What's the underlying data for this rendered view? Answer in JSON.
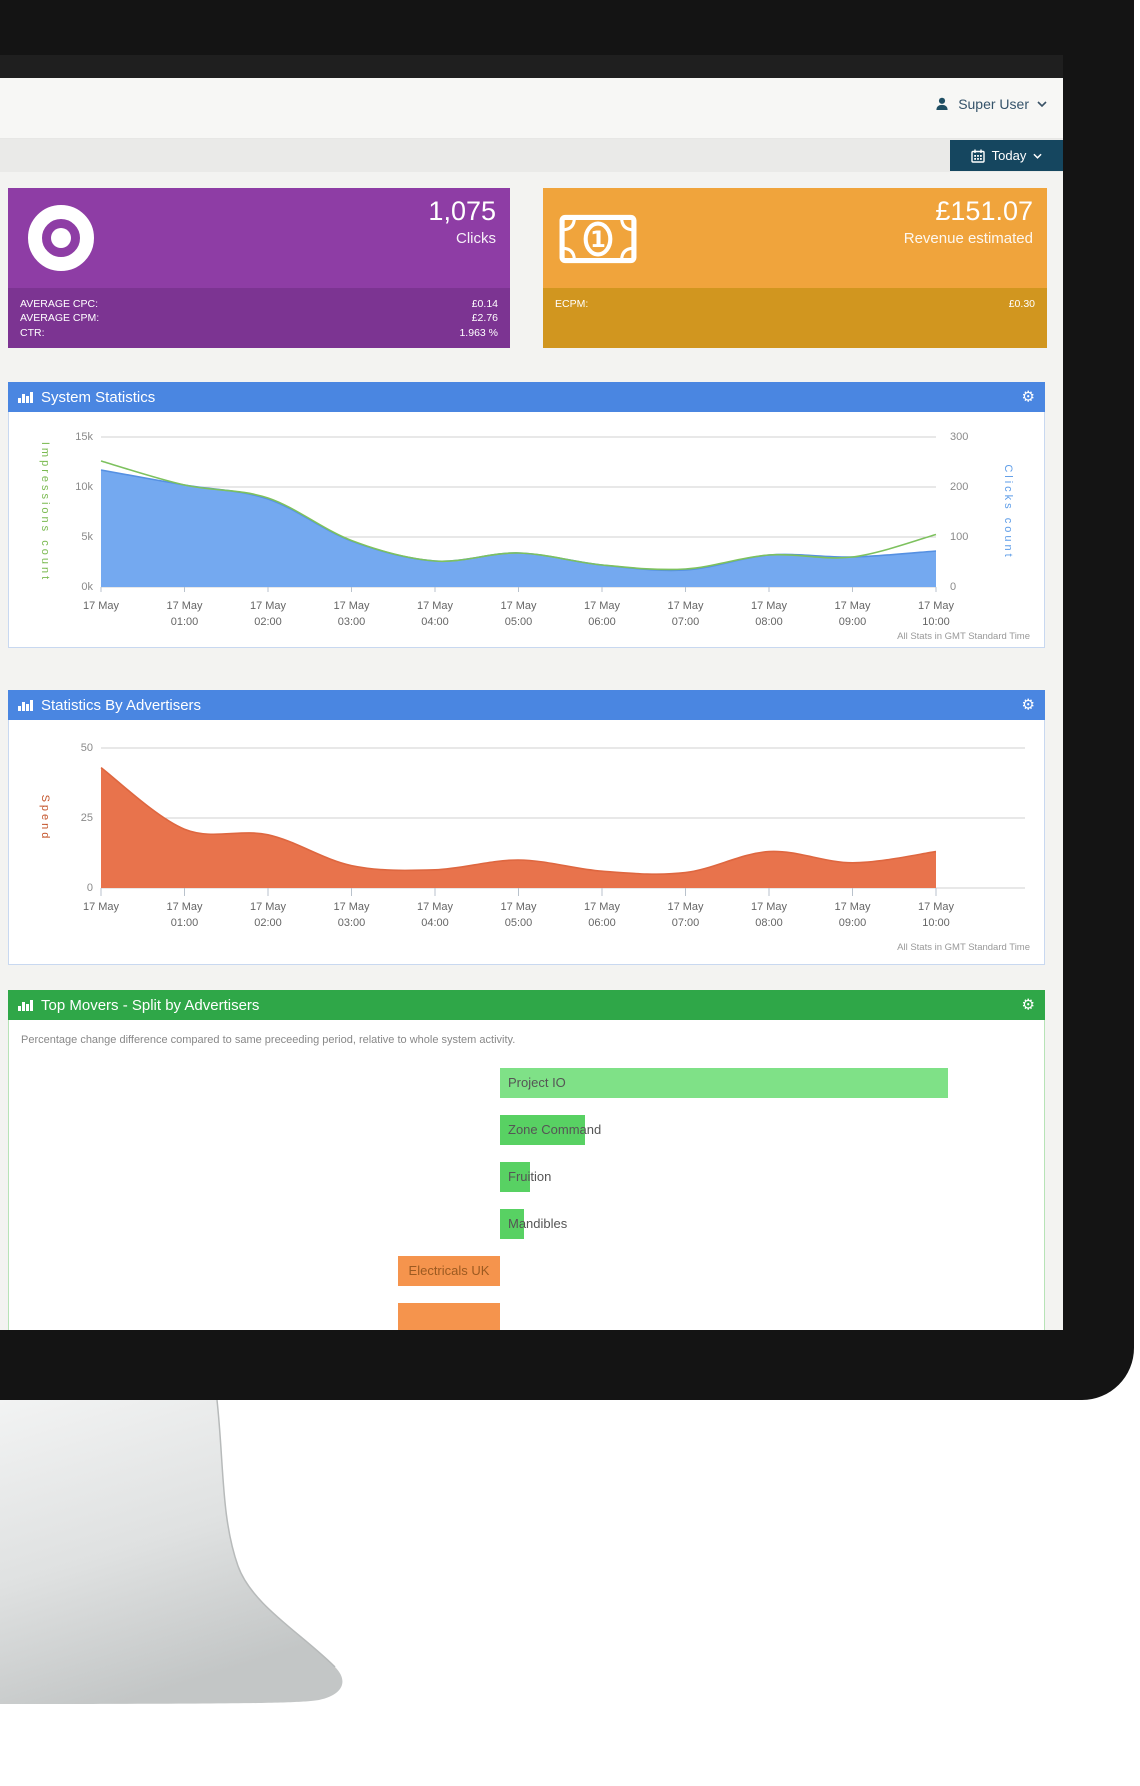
{
  "topbar": {
    "user_label": "Super User"
  },
  "datebar": {
    "today_label": "Today"
  },
  "cards": {
    "clicks": {
      "icon": "bullseye-icon",
      "value": "1,075",
      "label": "Clicks",
      "color_main": "#8e3da5",
      "color_footer": "#7c3492",
      "stats": [
        {
          "label": "AVERAGE CPC:",
          "value": "£0.14"
        },
        {
          "label": "AVERAGE CPM:",
          "value": "£2.76"
        },
        {
          "label": "CTR:",
          "value": "1.963 %"
        }
      ]
    },
    "revenue": {
      "icon": "banknote-icon",
      "value": "£151.07",
      "label": "Revenue estimated",
      "color_main": "#f0a43c",
      "color_footer": "#d1961f",
      "stats": [
        {
          "label": "ECPM:",
          "value": "£0.30"
        }
      ]
    }
  },
  "panels": [
    {
      "title": "System Statistics",
      "header_color": "#4a86e1"
    },
    {
      "title": "Statistics By Advertisers",
      "header_color": "#4a86e1"
    },
    {
      "title": "Top Movers - Split by Advertisers",
      "header_color": "#2fa748",
      "description": "Percentage change difference compared to same preceeding period, relative to whole system activity."
    }
  ],
  "chart_data": [
    {
      "type": "area",
      "title": "System Statistics",
      "note": "All Stats in GMT Standard Time",
      "grid": true,
      "x_labels": [
        {
          "day": "17 May",
          "time": ""
        },
        {
          "day": "17 May",
          "time": "01:00"
        },
        {
          "day": "17 May",
          "time": "02:00"
        },
        {
          "day": "17 May",
          "time": "03:00"
        },
        {
          "day": "17 May",
          "time": "04:00"
        },
        {
          "day": "17 May",
          "time": "05:00"
        },
        {
          "day": "17 May",
          "time": "06:00"
        },
        {
          "day": "17 May",
          "time": "07:00"
        },
        {
          "day": "17 May",
          "time": "08:00"
        },
        {
          "day": "17 May",
          "time": "09:00"
        },
        {
          "day": "17 May",
          "time": "10:00"
        }
      ],
      "left_axis": {
        "label": "Impressions count",
        "color": "#7aba50",
        "max": 15000,
        "ticks": [
          "15k",
          "10k",
          "5k",
          "0k"
        ]
      },
      "right_axis": {
        "label": "Clicks count",
        "color": "#5e9de8",
        "max": 300,
        "ticks": [
          "300",
          "200",
          "100",
          "0"
        ]
      },
      "series": [
        {
          "name": "Impressions count",
          "axis": "left",
          "color": "#5590e2",
          "fill": "#74a9f0",
          "values": [
            11700,
            10200,
            8800,
            4600,
            2600,
            3400,
            2200,
            1700,
            3200,
            3000,
            3600
          ]
        },
        {
          "name": "Clicks count",
          "axis": "right",
          "color": "#7dc15e",
          "fill": null,
          "values": [
            252,
            204,
            178,
            93,
            52,
            68,
            44,
            36,
            64,
            60,
            105
          ]
        }
      ]
    },
    {
      "type": "area",
      "title": "Statistics By Advertisers",
      "note": "All Stats in GMT Standard Time",
      "grid": true,
      "x_labels": [
        {
          "day": "17 May",
          "time": ""
        },
        {
          "day": "17 May",
          "time": "01:00"
        },
        {
          "day": "17 May",
          "time": "02:00"
        },
        {
          "day": "17 May",
          "time": "03:00"
        },
        {
          "day": "17 May",
          "time": "04:00"
        },
        {
          "day": "17 May",
          "time": "05:00"
        },
        {
          "day": "17 May",
          "time": "06:00"
        },
        {
          "day": "17 May",
          "time": "07:00"
        },
        {
          "day": "17 May",
          "time": "08:00"
        },
        {
          "day": "17 May",
          "time": "09:00"
        },
        {
          "day": "17 May",
          "time": "10:00"
        }
      ],
      "left_axis": {
        "label": "Spend",
        "color": "#c4552b",
        "max": 50,
        "ticks": [
          "50",
          "25",
          "0"
        ]
      },
      "series": [
        {
          "name": "Spend",
          "axis": "left",
          "color": "#de6740",
          "fill": "#e8734c",
          "values": [
            43,
            21,
            19,
            8,
            6.5,
            10,
            6,
            5.5,
            13,
            9,
            13
          ]
        }
      ]
    },
    {
      "type": "bar",
      "orientation": "horizontal",
      "title": "Top Movers - Split by Advertisers",
      "items": [
        {
          "label": "Project IO",
          "change": "positive",
          "magnitude": 448,
          "color": "#7fe187",
          "label_color": "#555555"
        },
        {
          "label": "Zone Command",
          "change": "positive",
          "magnitude": 85,
          "color": "#58d163",
          "label_color": "#555555"
        },
        {
          "label": "Fruition",
          "change": "positive",
          "magnitude": 30,
          "color": "#58d163",
          "label_color": "#555555"
        },
        {
          "label": "Mandibles",
          "change": "positive",
          "magnitude": 24,
          "color": "#58d163",
          "label_color": "#555555"
        },
        {
          "label": "Electricals UK",
          "change": "negative",
          "magnitude": 102,
          "color": "#f5944d",
          "label_color": "#9c5a21"
        },
        {
          "label": "",
          "change": "negative",
          "magnitude": 102,
          "color": "#f5944d",
          "label_color": "#9c5a21"
        }
      ]
    }
  ]
}
